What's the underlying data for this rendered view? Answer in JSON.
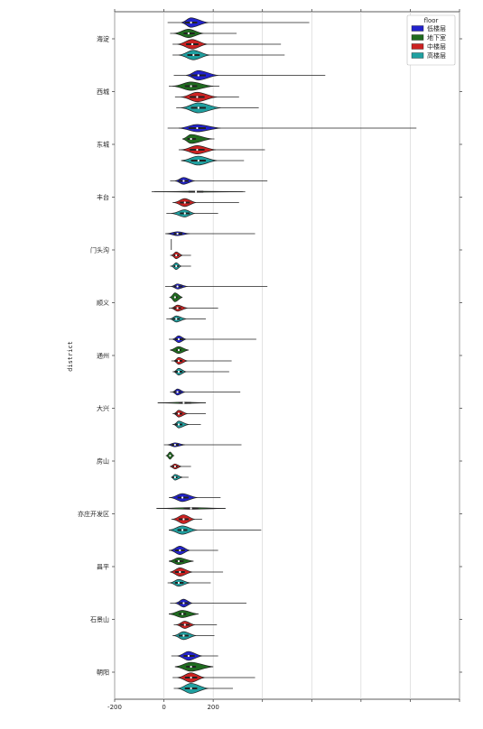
{
  "chart_data": {
    "type": "violin",
    "orientation": "horizontal",
    "ylabel": "district",
    "xlabel": "",
    "xlim": [
      -200,
      1200
    ],
    "xticks": [
      -200,
      0,
      200,
      400,
      600,
      800,
      1000,
      1200
    ],
    "xtick_labels": [
      "-200",
      "0",
      "200",
      "",
      "",
      "",
      "",
      ""
    ],
    "grid": "x",
    "legend": {
      "title": "floor",
      "placement": "top-right",
      "entries": [
        {
          "name": "低楼层",
          "color": "#2222cc"
        },
        {
          "name": "地下室",
          "color": "#1f6b1f"
        },
        {
          "name": "中楼层",
          "color": "#cc2222"
        },
        {
          "name": "高楼层",
          "color": "#20a0a0"
        }
      ]
    },
    "categories": [
      "海淀",
      "西城",
      "东城",
      "丰台",
      "门头沟",
      "顺义",
      "通州",
      "大兴",
      "房山",
      "亦庄开发区",
      "昌平",
      "石景山",
      "朝阳"
    ],
    "series": [
      {
        "name": "低楼层",
        "color": "#2222cc",
        "violins": [
          {
            "min": 15,
            "max": 590,
            "median": 110,
            "q1": 85,
            "q3": 135,
            "peak": 110,
            "lo": 70,
            "hi": 180,
            "w": 0.85
          },
          {
            "min": 40,
            "max": 655,
            "median": 140,
            "q1": 110,
            "q3": 170,
            "peak": 140,
            "lo": 90,
            "hi": 220,
            "w": 0.85
          },
          {
            "min": 15,
            "max": 1025,
            "median": 135,
            "q1": 100,
            "q3": 170,
            "peak": 135,
            "lo": 60,
            "hi": 230,
            "w": 0.65
          },
          {
            "min": 25,
            "max": 420,
            "median": 80,
            "q1": 60,
            "q3": 100,
            "peak": 80,
            "lo": 45,
            "hi": 125,
            "w": 0.6
          },
          {
            "min": 5,
            "max": 370,
            "median": 55,
            "q1": 40,
            "q3": 75,
            "peak": 55,
            "lo": 10,
            "hi": 105,
            "w": 0.35
          },
          {
            "min": 5,
            "max": 420,
            "median": 55,
            "q1": 40,
            "q3": 75,
            "peak": 55,
            "lo": 30,
            "hi": 95,
            "w": 0.45
          },
          {
            "min": 20,
            "max": 375,
            "median": 60,
            "q1": 45,
            "q3": 80,
            "peak": 60,
            "lo": 35,
            "hi": 90,
            "w": 0.6
          },
          {
            "min": 25,
            "max": 310,
            "median": 55,
            "q1": 40,
            "q3": 70,
            "peak": 55,
            "lo": 35,
            "hi": 85,
            "w": 0.55
          },
          {
            "min": 0,
            "max": 315,
            "median": 45,
            "q1": 30,
            "q3": 60,
            "peak": 45,
            "lo": 15,
            "hi": 85,
            "w": 0.35
          },
          {
            "min": 20,
            "max": 230,
            "median": 75,
            "q1": 55,
            "q3": 100,
            "peak": 75,
            "lo": 25,
            "hi": 135,
            "w": 0.7
          },
          {
            "min": 20,
            "max": 220,
            "median": 65,
            "q1": 45,
            "q3": 85,
            "peak": 65,
            "lo": 25,
            "hi": 105,
            "w": 0.75
          },
          {
            "min": 25,
            "max": 335,
            "median": 80,
            "q1": 60,
            "q3": 100,
            "peak": 80,
            "lo": 45,
            "hi": 115,
            "w": 0.7
          },
          {
            "min": 30,
            "max": 220,
            "median": 100,
            "q1": 80,
            "q3": 125,
            "peak": 100,
            "lo": 55,
            "hi": 155,
            "w": 0.8
          }
        ]
      },
      {
        "name": "地下室",
        "color": "#1f6b1f",
        "violins": [
          {
            "min": 25,
            "max": 295,
            "median": 100,
            "q1": 80,
            "q3": 125,
            "peak": 100,
            "lo": 40,
            "hi": 160,
            "w": 0.75
          },
          {
            "min": 20,
            "max": 225,
            "median": 110,
            "q1": 85,
            "q3": 135,
            "peak": 110,
            "lo": 35,
            "hi": 200,
            "w": 0.75
          },
          {
            "min": 75,
            "max": 205,
            "median": 110,
            "q1": 95,
            "q3": 130,
            "peak": 110,
            "lo": 75,
            "hi": 195,
            "w": 0.8
          },
          {
            "min": -50,
            "max": 330,
            "median": 130,
            "q1": 100,
            "q3": 160,
            "peak": 130,
            "lo": -40,
            "hi": 320,
            "w": 0.08
          },
          {
            "min": 30,
            "max": 30,
            "median": 30,
            "q1": 30,
            "q3": 30,
            "peak": 30,
            "lo": 30,
            "hi": 30,
            "w": 0.0,
            "single": true
          },
          {
            "min": 25,
            "max": 75,
            "median": 45,
            "q1": 40,
            "q3": 55,
            "peak": 45,
            "lo": 25,
            "hi": 75,
            "w": 0.8
          },
          {
            "min": 25,
            "max": 100,
            "median": 60,
            "q1": 50,
            "q3": 70,
            "peak": 60,
            "lo": 25,
            "hi": 100,
            "w": 0.6
          },
          {
            "min": -25,
            "max": 170,
            "median": 80,
            "q1": 60,
            "q3": 110,
            "peak": 80,
            "lo": -25,
            "hi": 170,
            "w": 0.12
          },
          {
            "min": 10,
            "max": 40,
            "median": 25,
            "q1": 20,
            "q3": 30,
            "peak": 25,
            "lo": 10,
            "hi": 40,
            "w": 0.65
          },
          {
            "min": -30,
            "max": 250,
            "median": 110,
            "q1": 80,
            "q3": 140,
            "peak": 110,
            "lo": -30,
            "hi": 250,
            "w": 0.15
          },
          {
            "min": 20,
            "max": 120,
            "median": 60,
            "q1": 45,
            "q3": 80,
            "peak": 60,
            "lo": 20,
            "hi": 120,
            "w": 0.6
          },
          {
            "min": 20,
            "max": 140,
            "median": 75,
            "q1": 60,
            "q3": 90,
            "peak": 75,
            "lo": 20,
            "hi": 140,
            "w": 0.65
          },
          {
            "min": 45,
            "max": 200,
            "median": 110,
            "q1": 90,
            "q3": 130,
            "peak": 110,
            "lo": 45,
            "hi": 200,
            "w": 0.8
          }
        ]
      },
      {
        "name": "中楼层",
        "color": "#cc2222",
        "violins": [
          {
            "min": 35,
            "max": 475,
            "median": 115,
            "q1": 90,
            "q3": 140,
            "peak": 115,
            "lo": 55,
            "hi": 175,
            "w": 0.85
          },
          {
            "min": 45,
            "max": 305,
            "median": 135,
            "q1": 105,
            "q3": 165,
            "peak": 135,
            "lo": 70,
            "hi": 215,
            "w": 0.85
          },
          {
            "min": 60,
            "max": 410,
            "median": 135,
            "q1": 105,
            "q3": 165,
            "peak": 135,
            "lo": 70,
            "hi": 210,
            "w": 0.75
          },
          {
            "min": 35,
            "max": 305,
            "median": 85,
            "q1": 65,
            "q3": 105,
            "peak": 85,
            "lo": 40,
            "hi": 130,
            "w": 0.7
          },
          {
            "min": 25,
            "max": 110,
            "median": 50,
            "q1": 40,
            "q3": 60,
            "peak": 50,
            "lo": 30,
            "hi": 75,
            "w": 0.6
          },
          {
            "min": 20,
            "max": 220,
            "median": 55,
            "q1": 40,
            "q3": 70,
            "peak": 55,
            "lo": 30,
            "hi": 95,
            "w": 0.55
          },
          {
            "min": 30,
            "max": 275,
            "median": 60,
            "q1": 45,
            "q3": 75,
            "peak": 60,
            "lo": 40,
            "hi": 95,
            "w": 0.6
          },
          {
            "min": 35,
            "max": 170,
            "median": 60,
            "q1": 45,
            "q3": 75,
            "peak": 60,
            "lo": 40,
            "hi": 95,
            "w": 0.6
          },
          {
            "min": 25,
            "max": 110,
            "median": 45,
            "q1": 35,
            "q3": 55,
            "peak": 45,
            "lo": 25,
            "hi": 70,
            "w": 0.45
          },
          {
            "min": 30,
            "max": 155,
            "median": 80,
            "q1": 60,
            "q3": 100,
            "peak": 80,
            "lo": 35,
            "hi": 125,
            "w": 0.8
          },
          {
            "min": 25,
            "max": 240,
            "median": 65,
            "q1": 45,
            "q3": 85,
            "peak": 65,
            "lo": 25,
            "hi": 115,
            "w": 0.75
          },
          {
            "min": 40,
            "max": 215,
            "median": 85,
            "q1": 65,
            "q3": 105,
            "peak": 85,
            "lo": 50,
            "hi": 125,
            "w": 0.65
          },
          {
            "min": 35,
            "max": 370,
            "median": 110,
            "q1": 85,
            "q3": 135,
            "peak": 110,
            "lo": 55,
            "hi": 165,
            "w": 0.85
          }
        ]
      },
      {
        "name": "高楼层",
        "color": "#20a0a0",
        "violins": [
          {
            "min": 35,
            "max": 490,
            "median": 120,
            "q1": 95,
            "q3": 145,
            "peak": 120,
            "lo": 60,
            "hi": 185,
            "w": 0.85
          },
          {
            "min": 50,
            "max": 385,
            "median": 140,
            "q1": 110,
            "q3": 170,
            "peak": 140,
            "lo": 70,
            "hi": 230,
            "w": 0.9
          },
          {
            "min": 70,
            "max": 325,
            "median": 140,
            "q1": 110,
            "q3": 170,
            "peak": 140,
            "lo": 70,
            "hi": 215,
            "w": 0.8
          },
          {
            "min": 10,
            "max": 220,
            "median": 85,
            "q1": 65,
            "q3": 105,
            "peak": 85,
            "lo": 30,
            "hi": 125,
            "w": 0.65
          },
          {
            "min": 25,
            "max": 110,
            "median": 50,
            "q1": 40,
            "q3": 60,
            "peak": 50,
            "lo": 30,
            "hi": 70,
            "w": 0.6
          },
          {
            "min": 10,
            "max": 170,
            "median": 50,
            "q1": 35,
            "q3": 65,
            "peak": 50,
            "lo": 25,
            "hi": 90,
            "w": 0.55
          },
          {
            "min": 35,
            "max": 265,
            "median": 60,
            "q1": 45,
            "q3": 75,
            "peak": 60,
            "lo": 40,
            "hi": 90,
            "w": 0.6
          },
          {
            "min": 35,
            "max": 150,
            "median": 60,
            "q1": 45,
            "q3": 75,
            "peak": 60,
            "lo": 40,
            "hi": 100,
            "w": 0.6
          },
          {
            "min": 30,
            "max": 100,
            "median": 45,
            "q1": 35,
            "q3": 55,
            "peak": 45,
            "lo": 30,
            "hi": 75,
            "w": 0.5
          },
          {
            "min": 20,
            "max": 395,
            "median": 75,
            "q1": 55,
            "q3": 95,
            "peak": 75,
            "lo": 20,
            "hi": 135,
            "w": 0.75
          },
          {
            "min": 15,
            "max": 190,
            "median": 60,
            "q1": 45,
            "q3": 80,
            "peak": 60,
            "lo": 25,
            "hi": 105,
            "w": 0.6
          },
          {
            "min": 35,
            "max": 205,
            "median": 80,
            "q1": 60,
            "q3": 100,
            "peak": 80,
            "lo": 40,
            "hi": 130,
            "w": 0.7
          },
          {
            "min": 40,
            "max": 280,
            "median": 110,
            "q1": 85,
            "q3": 135,
            "peak": 110,
            "lo": 55,
            "hi": 180,
            "w": 0.9
          }
        ]
      }
    ]
  }
}
